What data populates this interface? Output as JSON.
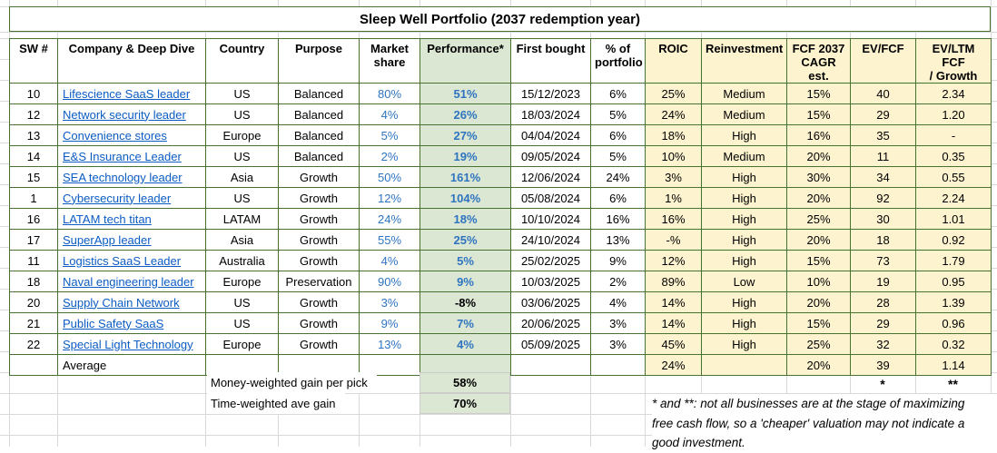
{
  "page": {
    "title": "Sleep Well Portfolio (2037 redemption year)"
  },
  "table": {
    "columns": [
      {
        "id": "sw",
        "label": "SW #"
      },
      {
        "id": "company",
        "label": "Company & Deep Dive"
      },
      {
        "id": "country",
        "label": "Country"
      },
      {
        "id": "purpose",
        "label": "Purpose"
      },
      {
        "id": "market_share",
        "label": "Market\nshare"
      },
      {
        "id": "performance",
        "label": "Performance*"
      },
      {
        "id": "first_bought",
        "label": "First bought"
      },
      {
        "id": "pct_portfolio",
        "label": "% of\nportfolio"
      },
      {
        "id": "roic",
        "label": "ROIC"
      },
      {
        "id": "reinvestment",
        "label": "Reinvestment"
      },
      {
        "id": "fcf_cagr",
        "label": "FCF 2037\nCAGR est."
      },
      {
        "id": "ev_fcf",
        "label": "EV/FCF"
      },
      {
        "id": "ev_ltm",
        "label": "EV/LTM FCF\n/ Growth"
      }
    ],
    "rows": [
      {
        "sw": "10",
        "company": "Lifescience SaaS leader",
        "country": "US",
        "purpose": "Balanced",
        "market_share": "80%",
        "performance": "51%",
        "first_bought": "15/12/2023",
        "pct_portfolio": "6%",
        "roic": "25%",
        "reinvestment": "Medium",
        "fcf_cagr": "15%",
        "ev_fcf": "40",
        "ev_ltm": "2.34"
      },
      {
        "sw": "12",
        "company": "Network security leader",
        "country": "US",
        "purpose": "Balanced",
        "market_share": "4%",
        "performance": "26%",
        "first_bought": "18/03/2024",
        "pct_portfolio": "5%",
        "roic": "24%",
        "reinvestment": "Medium",
        "fcf_cagr": "15%",
        "ev_fcf": "29",
        "ev_ltm": "1.20"
      },
      {
        "sw": "13",
        "company": "Convenience stores",
        "country": "Europe",
        "purpose": "Balanced",
        "market_share": "5%",
        "performance": "27%",
        "first_bought": "04/04/2024",
        "pct_portfolio": "6%",
        "roic": "18%",
        "reinvestment": "High",
        "fcf_cagr": "16%",
        "ev_fcf": "35",
        "ev_ltm": "-"
      },
      {
        "sw": "14",
        "company": "E&S Insurance Leader",
        "country": "US",
        "purpose": "Balanced",
        "market_share": "2%",
        "performance": "19%",
        "first_bought": "09/05/2024",
        "pct_portfolio": "5%",
        "roic": "10%",
        "reinvestment": "Medium",
        "fcf_cagr": "20%",
        "ev_fcf": "11",
        "ev_ltm": "0.35"
      },
      {
        "sw": "15",
        "company": "SEA technology leader",
        "country": "Asia",
        "purpose": "Growth",
        "market_share": "50%",
        "performance": "161%",
        "first_bought": "12/06/2024",
        "pct_portfolio": "24%",
        "roic": "3%",
        "reinvestment": "High",
        "fcf_cagr": "30%",
        "ev_fcf": "34",
        "ev_ltm": "0.55"
      },
      {
        "sw": "1",
        "company": "Cybersecurity leader",
        "country": "US",
        "purpose": "Growth",
        "market_share": "12%",
        "performance": "104%",
        "first_bought": "05/08/2024",
        "pct_portfolio": "6%",
        "roic": "1%",
        "reinvestment": "High",
        "fcf_cagr": "20%",
        "ev_fcf": "92",
        "ev_ltm": "2.24"
      },
      {
        "sw": "16",
        "company": "LATAM tech titan",
        "country": "LATAM",
        "purpose": "Growth",
        "market_share": "24%",
        "performance": "18%",
        "first_bought": "10/10/2024",
        "pct_portfolio": "16%",
        "roic": "16%",
        "reinvestment": "High",
        "fcf_cagr": "25%",
        "ev_fcf": "30",
        "ev_ltm": "1.01"
      },
      {
        "sw": "17",
        "company": "SuperApp leader",
        "country": "Asia",
        "purpose": "Growth",
        "market_share": "55%",
        "performance": "25%",
        "first_bought": "24/10/2024",
        "pct_portfolio": "13%",
        "roic": "-%",
        "reinvestment": "High",
        "fcf_cagr": "20%",
        "fcf_note": true,
        "ev_fcf": "18",
        "ev_ltm": "0.92"
      },
      {
        "sw": "11",
        "company": "Logistics SaaS Leader",
        "country": "Australia",
        "purpose": "Growth",
        "market_share": "4%",
        "performance": "5%",
        "first_bought": "25/02/2025",
        "pct_portfolio": "9%",
        "roic": "12%",
        "reinvestment": "High",
        "fcf_cagr": "15%",
        "ev_fcf": "73",
        "ev_ltm": "1.79"
      },
      {
        "sw": "18",
        "company": "Naval engineering leader",
        "country": "Europe",
        "purpose": "Preservation",
        "market_share": "90%",
        "performance": "9%",
        "first_bought": "10/03/2025",
        "pct_portfolio": "2%",
        "roic": "89%",
        "reinvestment": "Low",
        "fcf_cagr": "10%",
        "fcf_note": true,
        "ev_fcf": "19",
        "ev_ltm": "0.95"
      },
      {
        "sw": "20",
        "company": "Supply Chain Network",
        "country": "US",
        "purpose": "Growth",
        "market_share": "3%",
        "performance": "-8%",
        "perf_black": true,
        "first_bought": "03/06/2025",
        "pct_portfolio": "4%",
        "roic": "14%",
        "reinvestment": "High",
        "fcf_cagr": "20%",
        "ev_fcf": "28",
        "ev_ltm": "1.39"
      },
      {
        "sw": "21",
        "company": "Public Safety SaaS",
        "country": "US",
        "purpose": "Growth",
        "market_share": "9%",
        "performance": "7%",
        "first_bought": "20/06/2025",
        "pct_portfolio": "3%",
        "roic": "14%",
        "reinvestment": "High",
        "fcf_cagr": "15%",
        "ev_fcf": "29",
        "ev_ltm": "0.96"
      },
      {
        "sw": "22",
        "company": "Special Light Technology",
        "country": "Europe",
        "purpose": "Growth",
        "market_share": "13%",
        "performance": "4%",
        "first_bought": "05/09/2025",
        "pct_portfolio": "3%",
        "roic": "45%",
        "reinvestment": "High",
        "fcf_cagr": "25%",
        "ev_fcf": "32",
        "ev_ltm": "0.32"
      }
    ],
    "average": {
      "company": "Average",
      "roic": "24%",
      "fcf_cagr": "20%",
      "ev_fcf": "39",
      "ev_ltm": "1.14"
    }
  },
  "footer": {
    "money_label": "Money-weighted gain per pick",
    "money_value": "58%",
    "time_label": "Time-weighted ave gain",
    "time_value": "70%",
    "star": "*",
    "double_star": "**",
    "footnote": "* and **: not all businesses are at the stage of maximizing\nfree cash flow, so a 'cheaper' valuation may not indicate a\ngood investment."
  },
  "colors": {
    "border_green": "#47722f",
    "yellow_fill": "#fdf3cf",
    "green_fill": "#dbe7d3",
    "hyperlink_blue": "#0b5cc4",
    "value_blue": "#2e74c0",
    "negative_value_text": "#000000"
  }
}
